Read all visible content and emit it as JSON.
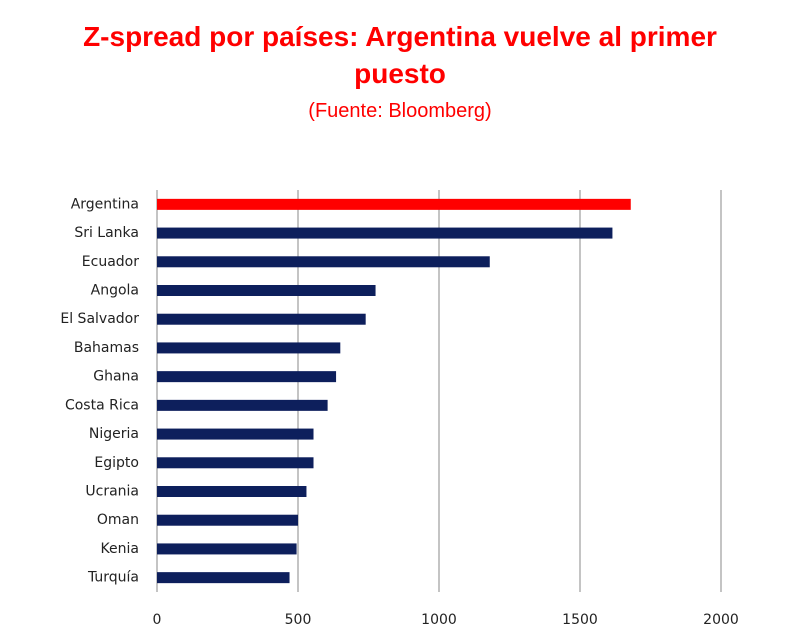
{
  "chart_data": {
    "type": "hbar",
    "title": "Z-spread por países: Argentina vuelve al primer puesto",
    "subtitle": "(Fuente: Bloomberg)",
    "categories": [
      "Argentina",
      "Sri Lanka",
      "Ecuador",
      "Angola",
      "El Salvador",
      "Bahamas",
      "Ghana",
      "Costa Rica",
      "Nigeria",
      "Egipto",
      "Ucrania",
      "Oman",
      "Kenia",
      "Turquía"
    ],
    "values": [
      1680,
      1615,
      1180,
      775,
      740,
      650,
      635,
      605,
      555,
      555,
      530,
      500,
      495,
      470
    ],
    "colors": [
      "#ff0000",
      "#0d1f5c",
      "#0d1f5c",
      "#0d1f5c",
      "#0d1f5c",
      "#0d1f5c",
      "#0d1f5c",
      "#0d1f5c",
      "#0d1f5c",
      "#0d1f5c",
      "#0d1f5c",
      "#0d1f5c",
      "#0d1f5c",
      "#0d1f5c"
    ],
    "xlim": [
      0,
      2000
    ],
    "xticks": [
      0,
      500,
      1000,
      1500,
      2000
    ],
    "grid": true
  }
}
